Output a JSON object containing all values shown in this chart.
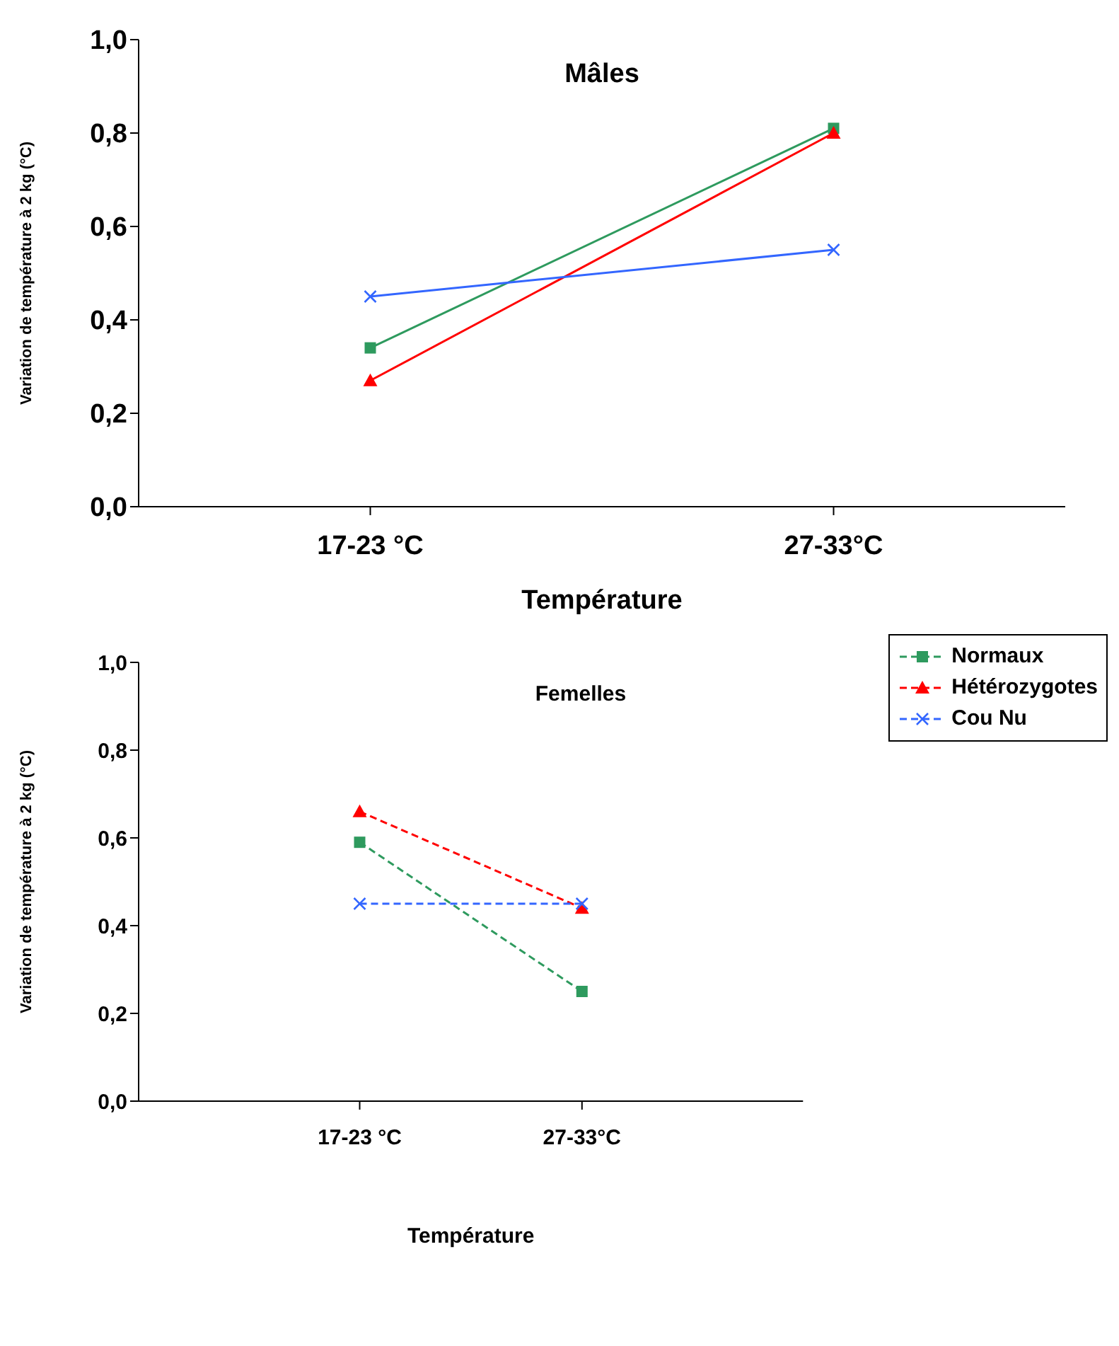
{
  "chart_data": [
    {
      "type": "line",
      "title": "Mâles",
      "xlabel": "Température",
      "ylabel": "Variation de température à 2 kg (°C)",
      "categories": [
        "17-23 °C",
        "27-33°C"
      ],
      "ylim": [
        0,
        1
      ],
      "yticks": [
        {
          "value": 0,
          "label": "0,0"
        },
        {
          "value": 0.2,
          "label": "0,2"
        },
        {
          "value": 0.4,
          "label": "0,4"
        },
        {
          "value": 0.6,
          "label": "0,6"
        },
        {
          "value": 0.8,
          "label": "0,8"
        },
        {
          "value": 1,
          "label": "1,0"
        }
      ],
      "grid": false,
      "legend": false,
      "line_style": "solid",
      "series": [
        {
          "color": "#2e9a5e",
          "marker": "square",
          "values": [
            0.34,
            0.81
          ]
        },
        {
          "color": "#ff0000",
          "marker": "triangle",
          "values": [
            0.27,
            0.8
          ]
        },
        {
          "color": "#3366ff",
          "marker": "cross",
          "values": [
            0.45,
            0.55
          ]
        }
      ]
    },
    {
      "type": "line",
      "title": "Femelles",
      "xlabel": "Température",
      "ylabel": "Variation de température à 2 kg (°C)",
      "categories": [
        "17-23 °C",
        "27-33°C"
      ],
      "ylim": [
        0,
        1
      ],
      "yticks": [
        {
          "value": 0,
          "label": "0,0"
        },
        {
          "value": 0.2,
          "label": "0,2"
        },
        {
          "value": 0.4,
          "label": "0,4"
        },
        {
          "value": 0.6,
          "label": "0,6"
        },
        {
          "value": 0.8,
          "label": "0,8"
        },
        {
          "value": 1,
          "label": "1,0"
        }
      ],
      "grid": false,
      "legend": "top right",
      "line_style": "dashed",
      "series": [
        {
          "name": "Normaux",
          "color": "#2e9a5e",
          "marker": "square",
          "values": [
            0.59,
            0.25
          ]
        },
        {
          "name": "Hétérozygotes",
          "color": "#ff0000",
          "marker": "triangle",
          "values": [
            0.66,
            0.44
          ]
        },
        {
          "name": "Cou Nu",
          "color": "#3366ff",
          "marker": "cross",
          "values": [
            0.45,
            0.45
          ]
        }
      ]
    }
  ]
}
